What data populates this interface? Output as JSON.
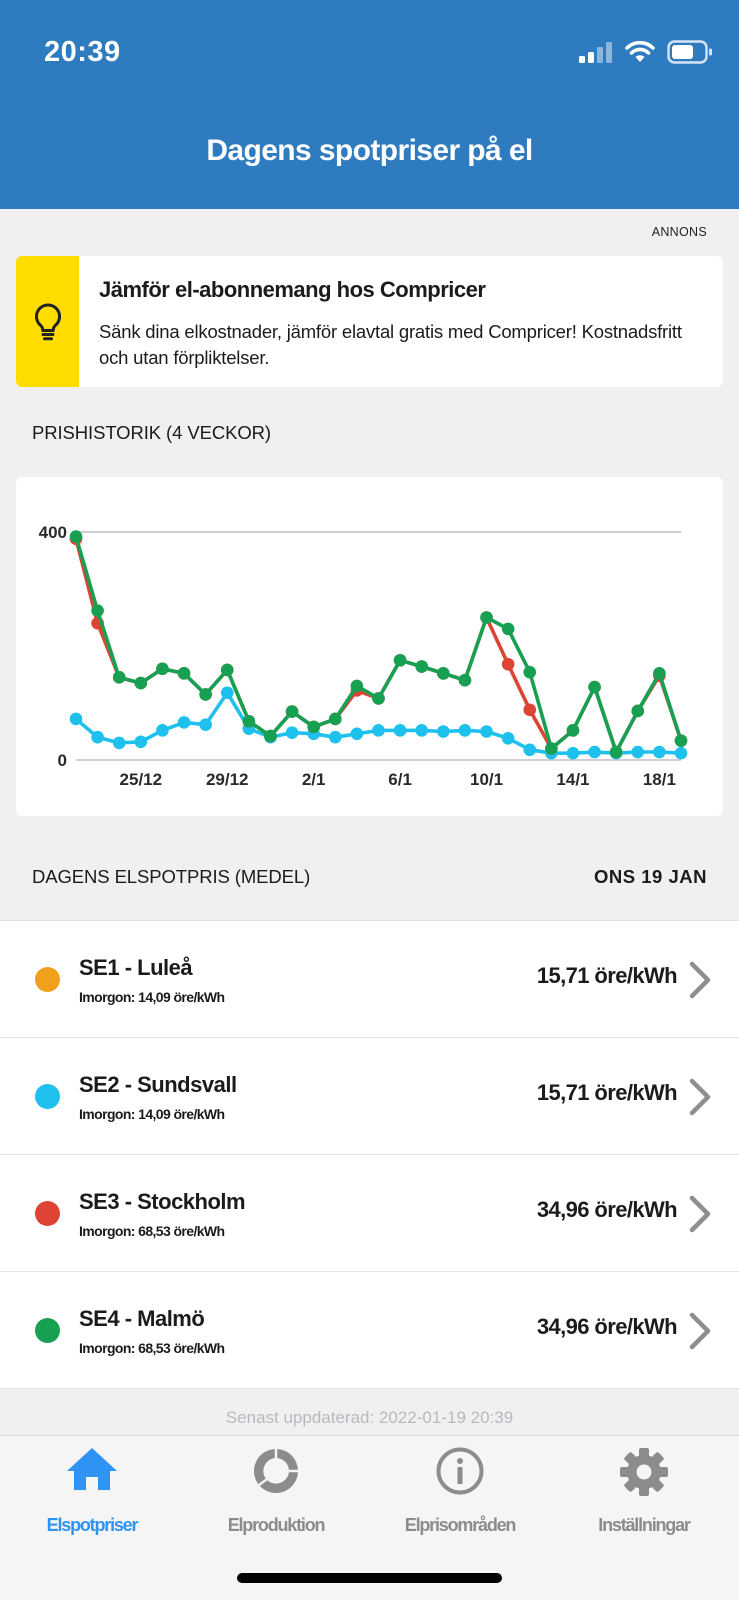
{
  "status_bar": {
    "time": "20:39"
  },
  "header": {
    "title": "Dagens spotpriser på el"
  },
  "ad": {
    "label": "ANNONS",
    "title": "Jämför el-abonnemang hos Compricer",
    "body": "Sänk dina elkostnader, jämför elavtal gratis med Compricer! Kostnadsfritt och utan förpliktelser.",
    "stripe_color": "#ffdd00",
    "icon": "lightbulb-icon"
  },
  "history": {
    "heading": "PRISHISTORIK (4 VECKOR)"
  },
  "chart_data": {
    "type": "line",
    "ylim": [
      0,
      400
    ],
    "y_ticks": [
      "0",
      "400"
    ],
    "x_ticks": [
      "25/12",
      "29/12",
      "2/1",
      "6/1",
      "10/1",
      "14/1",
      "18/1"
    ],
    "x_tick_positions": [
      3,
      7,
      11,
      15,
      19,
      23,
      27
    ],
    "point_count": 29,
    "series": [
      {
        "id": "blue",
        "color": "#1ec0ee",
        "values": [
          72,
          40,
          30,
          32,
          52,
          66,
          62,
          118,
          55,
          40,
          48,
          46,
          40,
          46,
          52,
          52,
          52,
          50,
          52,
          50,
          38,
          18,
          12,
          12,
          14,
          12,
          14,
          14,
          12
        ]
      },
      {
        "id": "red",
        "color": "#dd4433",
        "values": [
          388,
          240,
          145,
          135,
          160,
          152,
          115,
          158,
          68,
          42,
          85,
          58,
          72,
          122,
          108,
          175,
          164,
          152,
          140,
          250,
          168,
          88,
          20,
          52,
          128,
          14,
          86,
          148,
          34
        ]
      },
      {
        "id": "green",
        "color": "#18a052",
        "values": [
          392,
          262,
          145,
          135,
          160,
          152,
          115,
          158,
          68,
          42,
          85,
          58,
          72,
          130,
          108,
          175,
          164,
          152,
          140,
          250,
          230,
          154,
          20,
          52,
          128,
          14,
          86,
          152,
          34
        ]
      }
    ]
  },
  "today": {
    "heading": "DAGENS ELSPOTPRIS (MEDEL)",
    "date": "ONS 19 JAN"
  },
  "regions": [
    {
      "name": "SE1 - Luleå",
      "tomorrow": "Imorgon: 14,09 öre/kWh",
      "price": "15,71 öre/kWh",
      "color": "#f1a01c"
    },
    {
      "name": "SE2 - Sundsvall",
      "tomorrow": "Imorgon: 14,09 öre/kWh",
      "price": "15,71 öre/kWh",
      "color": "#1ec0ee"
    },
    {
      "name": "SE3 - Stockholm",
      "tomorrow": "Imorgon: 68,53 öre/kWh",
      "price": "34,96 öre/kWh",
      "color": "#dd4433"
    },
    {
      "name": "SE4 - Malmö",
      "tomorrow": "Imorgon: 68,53 öre/kWh",
      "price": "34,96 öre/kWh",
      "color": "#18a052"
    }
  ],
  "footer": {
    "updated": "Senast uppdaterad: 2022-01-19 20:39"
  },
  "tabs": [
    {
      "label": "Elspotpriser",
      "icon": "home-icon",
      "active": true
    },
    {
      "label": "Elproduktion",
      "icon": "ring-chart-icon",
      "active": false
    },
    {
      "label": "Elprisområden",
      "icon": "info-icon",
      "active": false
    },
    {
      "label": "Inställningar",
      "icon": "gear-icon",
      "active": false
    }
  ],
  "colors": {
    "header": "#2e7bc0",
    "active_tab": "#2f93f3",
    "inactive_tab": "#8c8c8f"
  }
}
